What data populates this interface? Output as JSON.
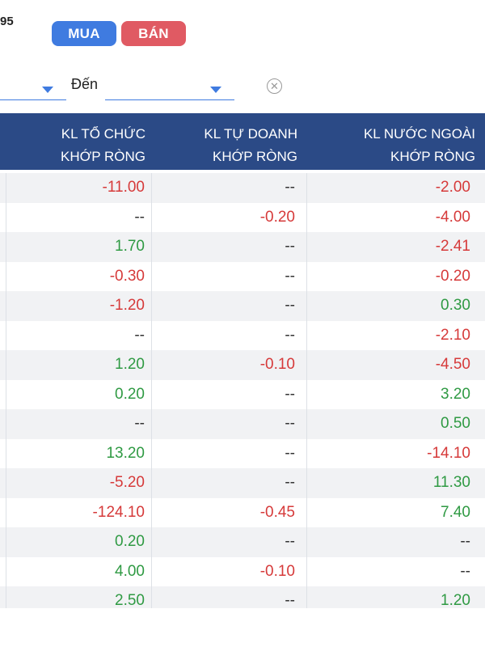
{
  "header": {
    "code_fragment": "95",
    "buy_label": "MUA",
    "sell_label": "BÁN",
    "to_label": "Đến"
  },
  "colors": {
    "positive": "#2f9a43",
    "negative": "#d63a3a",
    "header_bg": "#2b4a86",
    "buy": "#3f7be0",
    "sell": "#e05a63"
  },
  "icons": {
    "clear": "clear-circle-icon",
    "dropdown": "chevron-down-icon"
  },
  "table": {
    "headers": [
      {
        "line1": "KL TỔ CHỨC",
        "line2": "KHỚP RÒNG"
      },
      {
        "line1": "KL TỰ DOANH",
        "line2": "KHỚP RÒNG"
      },
      {
        "line1": "KL NƯỚC NGOÀI",
        "line2": "KHỚP RÒNG"
      }
    ],
    "rows": [
      {
        "org": "-11.00",
        "prop": "--",
        "foreign": "-2.00"
      },
      {
        "org": "--",
        "prop": "-0.20",
        "foreign": "-4.00"
      },
      {
        "org": "1.70",
        "prop": "--",
        "foreign": "-2.41"
      },
      {
        "org": "-0.30",
        "prop": "--",
        "foreign": "-0.20"
      },
      {
        "org": "-1.20",
        "prop": "--",
        "foreign": "0.30"
      },
      {
        "org": "--",
        "prop": "--",
        "foreign": "-2.10"
      },
      {
        "org": "1.20",
        "prop": "-0.10",
        "foreign": "-4.50"
      },
      {
        "org": "0.20",
        "prop": "--",
        "foreign": "3.20"
      },
      {
        "org": "--",
        "prop": "--",
        "foreign": "0.50"
      },
      {
        "org": "13.20",
        "prop": "--",
        "foreign": "-14.10"
      },
      {
        "org": "-5.20",
        "prop": "--",
        "foreign": "11.30"
      },
      {
        "org": "-124.10",
        "prop": "-0.45",
        "foreign": "7.40"
      },
      {
        "org": "0.20",
        "prop": "--",
        "foreign": "--"
      },
      {
        "org": "4.00",
        "prop": "-0.10",
        "foreign": "--"
      },
      {
        "org": "2.50",
        "prop": "--",
        "foreign": "1.20"
      }
    ]
  }
}
